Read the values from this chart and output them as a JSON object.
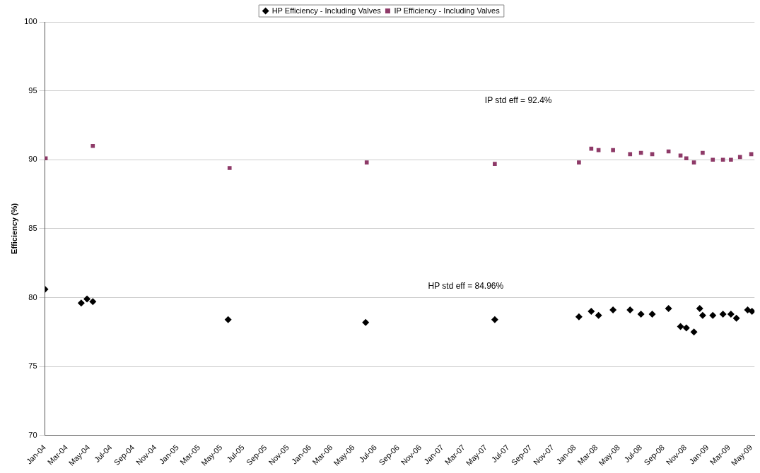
{
  "chart_data": {
    "type": "scatter",
    "ylabel": "Efficiency (%)",
    "ylim": [
      70,
      100
    ],
    "yticks": [
      70,
      75,
      80,
      85,
      90,
      95,
      100
    ],
    "xlim": [
      "2004-01-01",
      "2009-05-10"
    ],
    "xticks": [
      {
        "value": "2004-01-01",
        "label": "Jan-04"
      },
      {
        "value": "2004-03-01",
        "label": "Mar-04"
      },
      {
        "value": "2004-05-01",
        "label": "May-04"
      },
      {
        "value": "2004-07-01",
        "label": "Jul-04"
      },
      {
        "value": "2004-09-01",
        "label": "Sep-04"
      },
      {
        "value": "2004-11-01",
        "label": "Nov-04"
      },
      {
        "value": "2005-01-01",
        "label": "Jan-05"
      },
      {
        "value": "2005-03-01",
        "label": "Mar-05"
      },
      {
        "value": "2005-05-01",
        "label": "May-05"
      },
      {
        "value": "2005-07-01",
        "label": "Jul-05"
      },
      {
        "value": "2005-09-01",
        "label": "Sep-05"
      },
      {
        "value": "2005-11-01",
        "label": "Nov-05"
      },
      {
        "value": "2006-01-01",
        "label": "Jan-06"
      },
      {
        "value": "2006-03-01",
        "label": "Mar-06"
      },
      {
        "value": "2006-05-01",
        "label": "May-06"
      },
      {
        "value": "2006-07-01",
        "label": "Jul-06"
      },
      {
        "value": "2006-09-01",
        "label": "Sep-06"
      },
      {
        "value": "2006-11-01",
        "label": "Nov-06"
      },
      {
        "value": "2007-01-01",
        "label": "Jan-07"
      },
      {
        "value": "2007-03-01",
        "label": "Mar-07"
      },
      {
        "value": "2007-05-01",
        "label": "May-07"
      },
      {
        "value": "2007-07-01",
        "label": "Jul-07"
      },
      {
        "value": "2007-09-01",
        "label": "Sep-07"
      },
      {
        "value": "2007-11-01",
        "label": "Nov-07"
      },
      {
        "value": "2008-01-01",
        "label": "Jan-08"
      },
      {
        "value": "2008-03-01",
        "label": "Mar-08"
      },
      {
        "value": "2008-05-01",
        "label": "May-08"
      },
      {
        "value": "2008-07-01",
        "label": "Jul-08"
      },
      {
        "value": "2008-09-01",
        "label": "Sep-08"
      },
      {
        "value": "2008-11-01",
        "label": "Nov-08"
      },
      {
        "value": "2009-01-01",
        "label": "Jan-09"
      },
      {
        "value": "2009-03-01",
        "label": "Mar-09"
      },
      {
        "value": "2009-05-01",
        "label": "May-09"
      }
    ],
    "grid": "y",
    "legend": "top",
    "series": [
      {
        "name": "HP Efficiency - Including Valves",
        "color": "#000000",
        "marker": "diamond",
        "x": [
          "2004-01-01",
          "2004-04-10",
          "2004-04-26",
          "2004-05-12",
          "2005-05-20",
          "2006-06-03",
          "2007-05-25",
          "2008-01-12",
          "2008-02-15",
          "2008-03-06",
          "2008-04-15",
          "2008-06-01",
          "2008-07-01",
          "2008-08-01",
          "2008-09-15",
          "2008-10-18",
          "2008-11-03",
          "2008-11-24",
          "2008-12-10",
          "2008-12-18",
          "2009-01-15",
          "2009-02-12",
          "2009-03-06",
          "2009-03-21",
          "2009-04-21",
          "2009-05-03"
        ],
        "values": [
          80.6,
          79.6,
          79.9,
          79.7,
          78.4,
          78.2,
          78.4,
          78.6,
          79.0,
          78.7,
          79.1,
          79.1,
          78.8,
          78.8,
          79.2,
          77.9,
          77.8,
          77.5,
          79.2,
          78.7,
          78.7,
          78.8,
          78.8,
          78.5,
          79.1,
          79.0
        ]
      },
      {
        "name": "IP Efficiency - Including Valves",
        "color": "#8e3a68",
        "marker": "square",
        "x": [
          "2004-01-03",
          "2004-05-12",
          "2005-05-24",
          "2006-06-06",
          "2007-05-25",
          "2008-01-12",
          "2008-02-15",
          "2008-03-06",
          "2008-04-15",
          "2008-06-01",
          "2008-07-01",
          "2008-08-01",
          "2008-09-15",
          "2008-10-18",
          "2008-11-03",
          "2008-11-24",
          "2008-12-18",
          "2009-01-15",
          "2009-02-12",
          "2009-03-06",
          "2009-03-31",
          "2009-05-01"
        ],
        "values": [
          90.1,
          91.0,
          89.4,
          89.8,
          89.7,
          89.8,
          90.8,
          90.7,
          90.7,
          90.4,
          90.5,
          90.4,
          90.6,
          90.3,
          90.1,
          89.8,
          90.5,
          90.0,
          90.0,
          90.0,
          90.2,
          90.4
        ]
      }
    ],
    "annotations": [
      "IP std eff = 92.4%",
      "HP std eff = 84.96%"
    ]
  }
}
